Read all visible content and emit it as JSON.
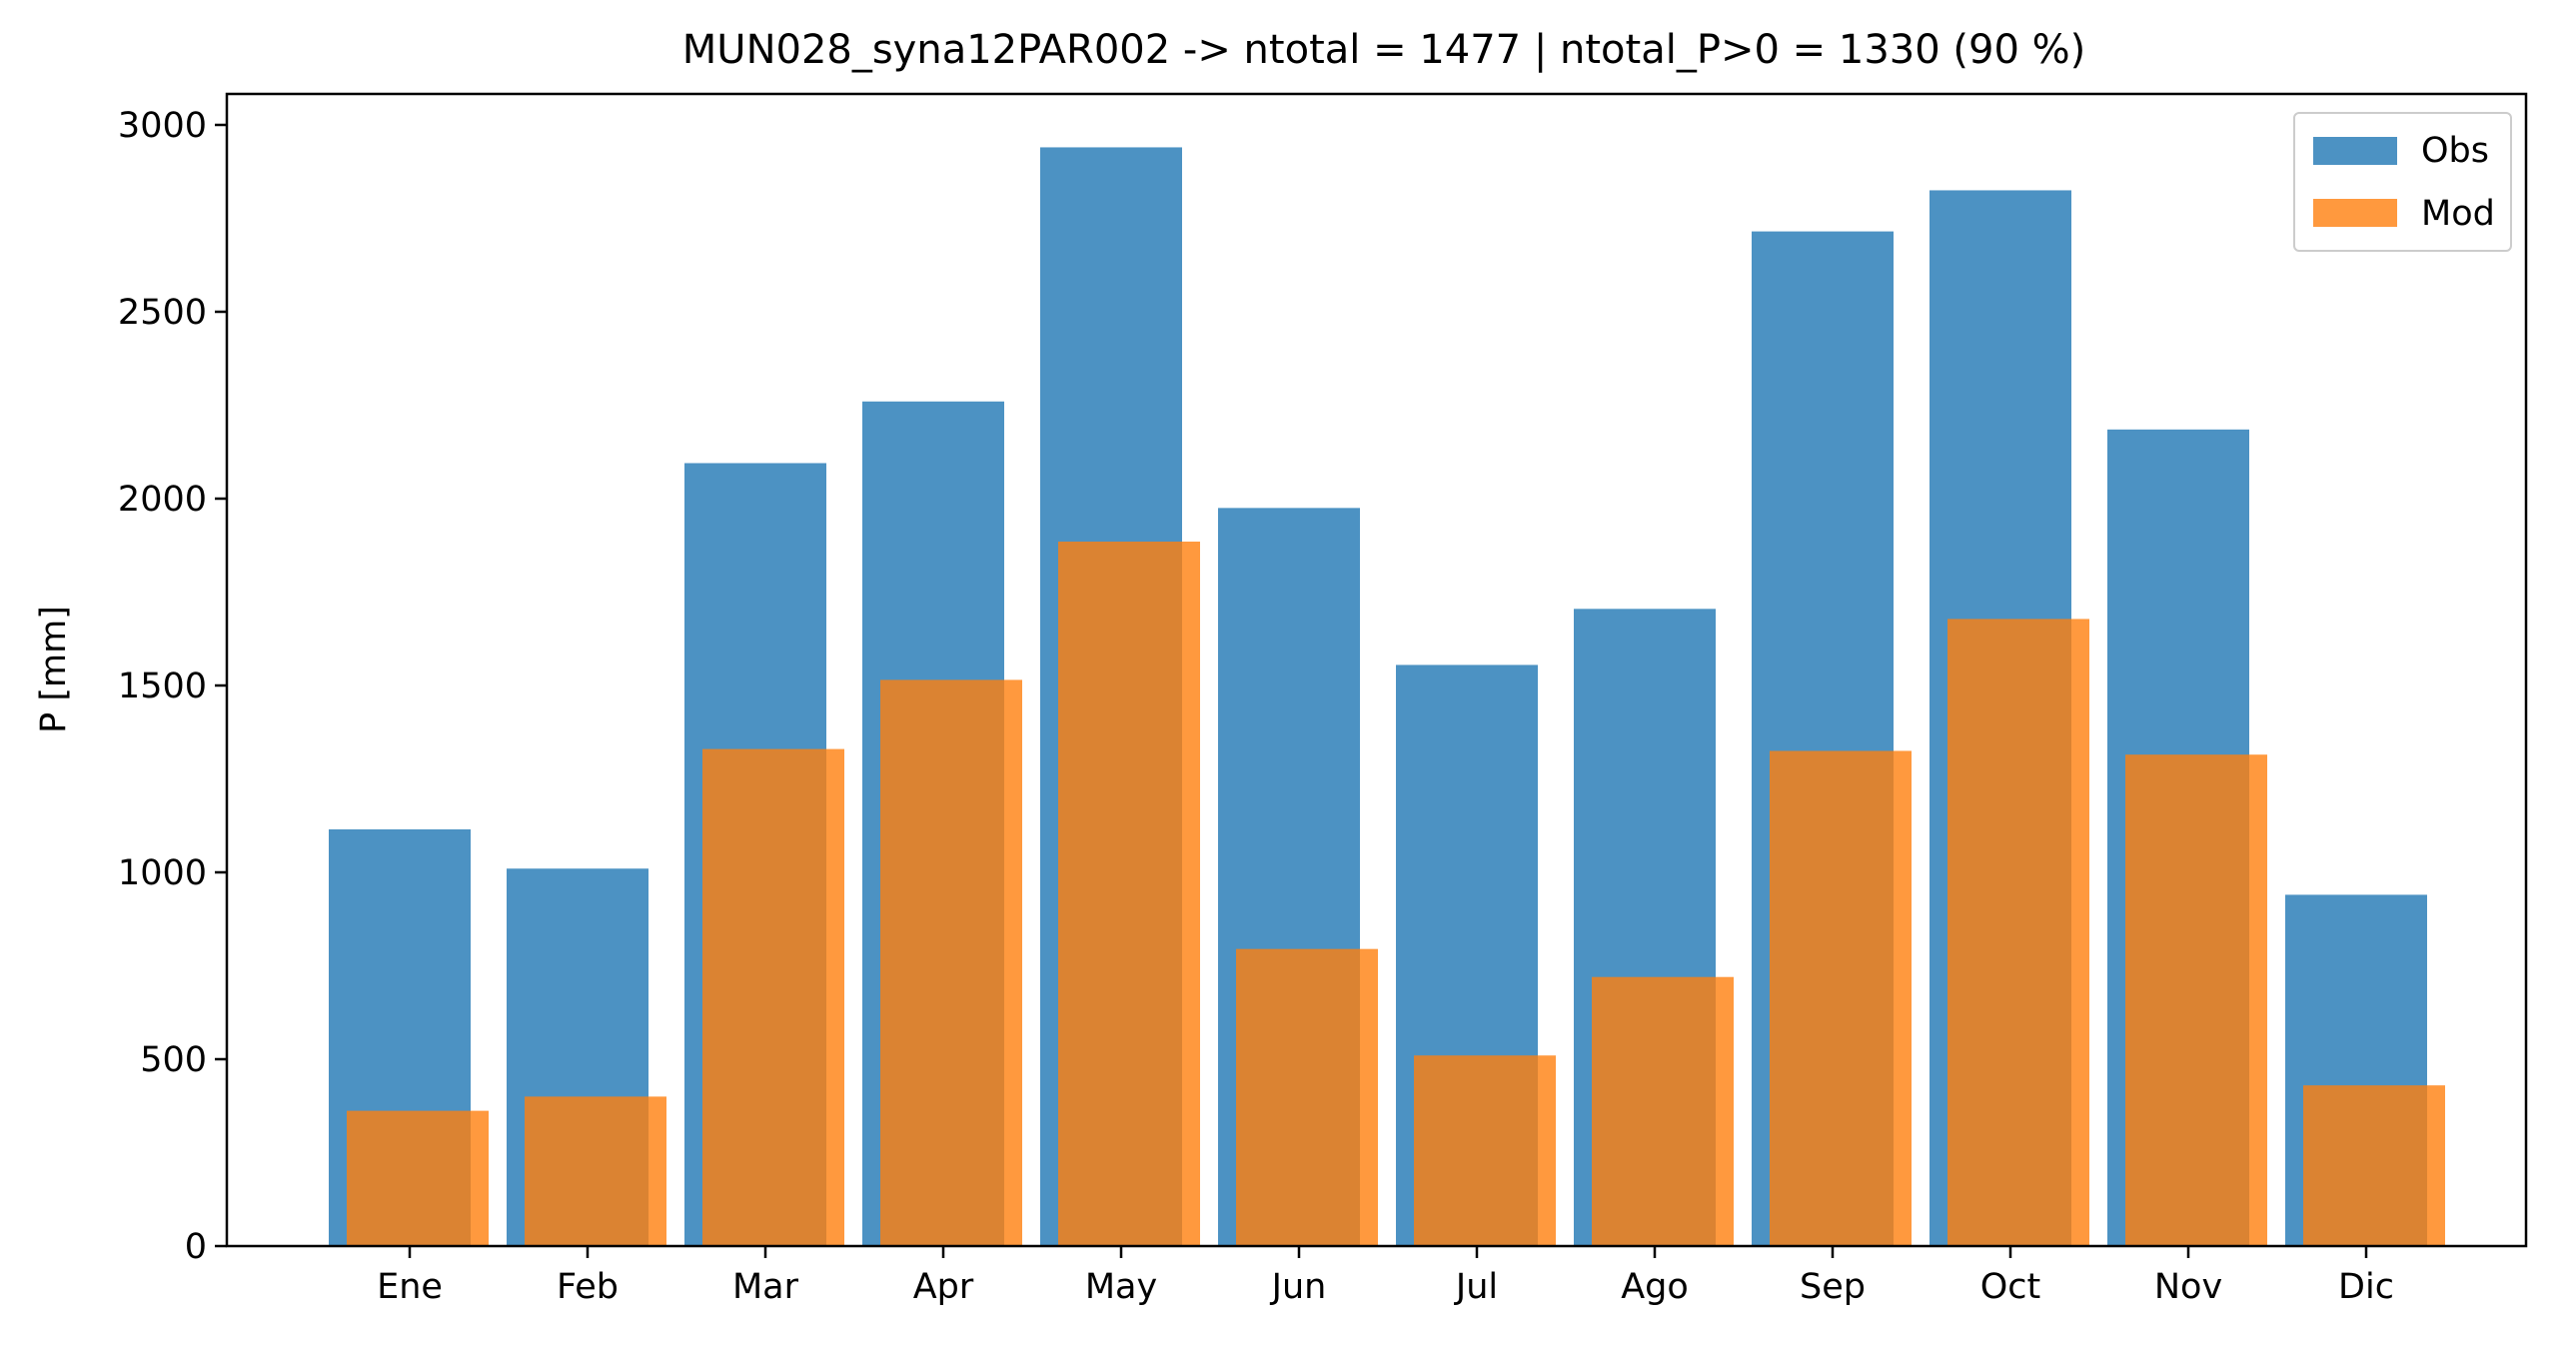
{
  "chart_data": {
    "type": "bar",
    "title": "MUN028_syna12PAR002 -> ntotal = 1477 | ntotal_P>0 = 1330 (90 %)",
    "xlabel": "",
    "ylabel": "P [mm]",
    "ylim": [
      0,
      3100
    ],
    "yticks": [
      0,
      500,
      1000,
      1500,
      2000,
      2500,
      3000
    ],
    "grid": false,
    "legend_position": "top-right",
    "categories": [
      "Ene",
      "Feb",
      "Mar",
      "Apr",
      "May",
      "Jun",
      "Jul",
      "Ago",
      "Sep",
      "Oct",
      "Nov",
      "Dic"
    ],
    "series": [
      {
        "name": "Obs",
        "color": "#1f77b4",
        "opacity": 0.8,
        "values": [
          1115,
          1010,
          2095,
          2260,
          2940,
          1975,
          1555,
          1705,
          2715,
          2825,
          2185,
          940
        ]
      },
      {
        "name": "Mod",
        "color": "#ff7f0e",
        "opacity": 0.8,
        "values": [
          362,
          400,
          1330,
          1515,
          1885,
          795,
          510,
          720,
          1325,
          1678,
          1315,
          430
        ]
      }
    ]
  }
}
